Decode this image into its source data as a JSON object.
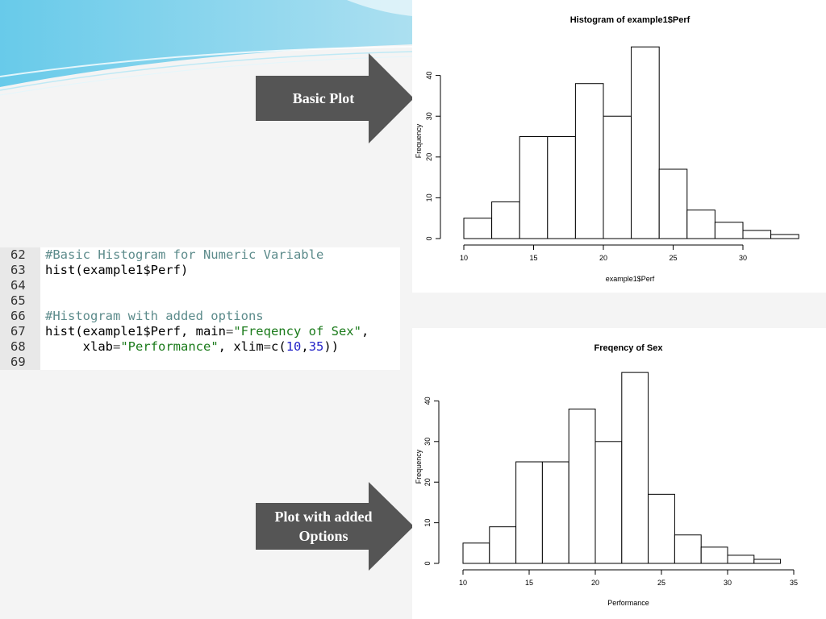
{
  "slide": {
    "label_basic": "Basic Plot",
    "label_options_line1": "Plot with added",
    "label_options_line2": "Options",
    "accent_color": "#555555",
    "decor_color": "#7fd0e8"
  },
  "code": {
    "lines": [
      {
        "num": "62",
        "tokens": [
          {
            "t": "#Basic Histogram for Numeric Variable",
            "c": "c-comment"
          }
        ]
      },
      {
        "num": "63",
        "tokens": [
          {
            "t": "hist(example1$Perf)",
            "c": ""
          }
        ]
      },
      {
        "num": "64",
        "tokens": []
      },
      {
        "num": "65",
        "tokens": []
      },
      {
        "num": "66",
        "tokens": [
          {
            "t": "#Histogram with added options",
            "c": "c-comment"
          }
        ]
      },
      {
        "num": "67",
        "tokens": [
          {
            "t": "hist(example1$Perf, main",
            "c": ""
          },
          {
            "t": "=",
            "c": "c-op"
          },
          {
            "t": "\"Freqency of Sex\"",
            "c": "c-str"
          },
          {
            "t": ",",
            "c": ""
          }
        ]
      },
      {
        "num": "68",
        "tokens": [
          {
            "t": "     xlab",
            "c": ""
          },
          {
            "t": "=",
            "c": "c-op"
          },
          {
            "t": "\"Performance\"",
            "c": "c-str"
          },
          {
            "t": ", xlim",
            "c": ""
          },
          {
            "t": "=",
            "c": "c-op"
          },
          {
            "t": "c(",
            "c": ""
          },
          {
            "t": "10",
            "c": "c-num"
          },
          {
            "t": ",",
            "c": ""
          },
          {
            "t": "35",
            "c": "c-num"
          },
          {
            "t": "))",
            "c": ""
          }
        ]
      },
      {
        "num": "69",
        "tokens": []
      }
    ]
  },
  "chart_data": [
    {
      "type": "bar",
      "title": "Histogram of example1$Perf",
      "xlabel": "example1$Perf",
      "ylabel": "Frequency",
      "bin_edges": [
        10,
        12,
        14,
        16,
        18,
        20,
        22,
        24,
        26,
        28,
        30,
        32,
        34
      ],
      "values": [
        5,
        9,
        25,
        25,
        38,
        30,
        47,
        17,
        7,
        4,
        2,
        1
      ],
      "xticks": [
        10,
        15,
        20,
        25,
        30
      ],
      "yticks": [
        0,
        10,
        20,
        30,
        40
      ],
      "xlim": [
        10,
        34
      ],
      "ylim": [
        0,
        47
      ],
      "grid": false
    },
    {
      "type": "bar",
      "title": "Freqency of Sex",
      "xlabel": "Performance",
      "ylabel": "Frequency",
      "bin_edges": [
        10,
        12,
        14,
        16,
        18,
        20,
        22,
        24,
        26,
        28,
        30,
        32,
        34
      ],
      "values": [
        5,
        9,
        25,
        25,
        38,
        30,
        47,
        17,
        7,
        4,
        2,
        1
      ],
      "xticks": [
        10,
        15,
        20,
        25,
        30,
        35
      ],
      "yticks": [
        0,
        10,
        20,
        30,
        40
      ],
      "xlim": [
        10,
        35
      ],
      "ylim": [
        0,
        47
      ],
      "grid": false
    }
  ]
}
